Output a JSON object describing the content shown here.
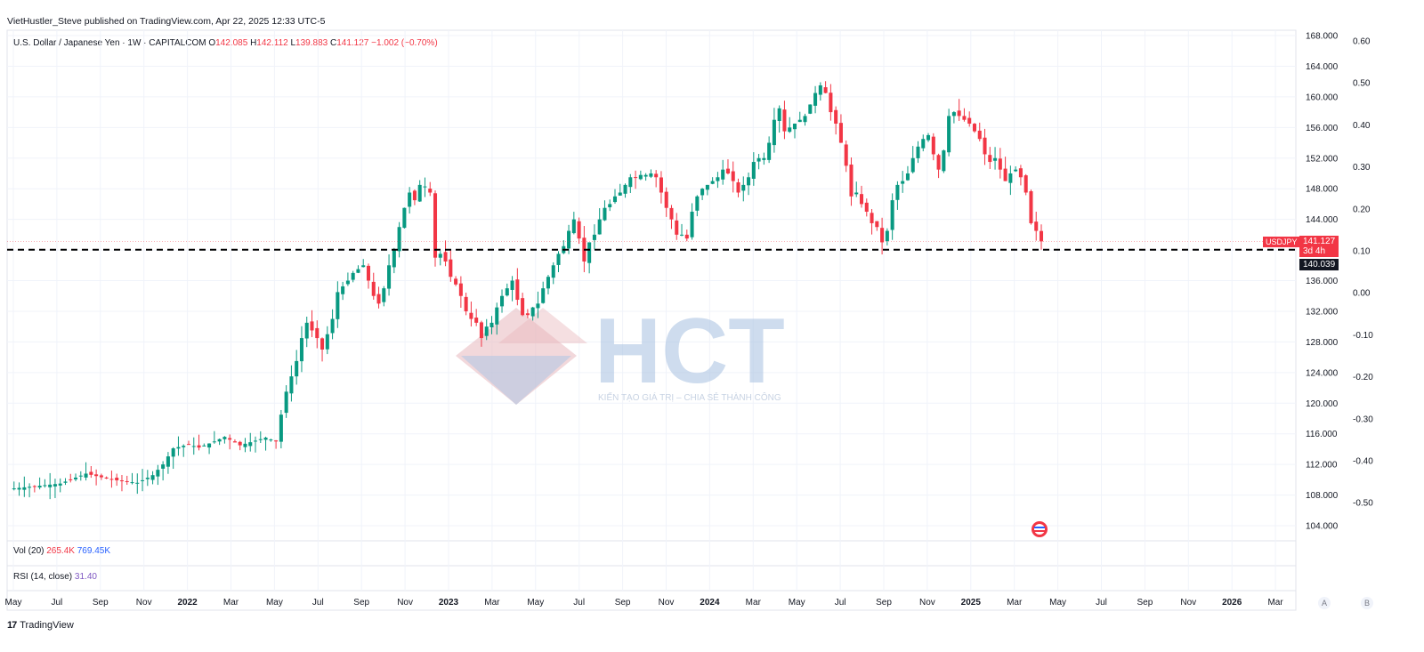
{
  "header": {
    "published_line": "VietHustler_Steve published on TradingView.com, Apr 22, 2025 12:33 UTC-5"
  },
  "legend": {
    "symbol": "U.S. Dollar / Japanese Yen · 1W · CAPITALCOM",
    "o_label": "O",
    "o_value": "142.085",
    "h_label": "H",
    "h_value": "142.112",
    "l_label": "L",
    "l_value": "139.883",
    "c_label": "C",
    "c_value": "141.127",
    "change": "−1.002 (−0.70%)"
  },
  "volume_pane": {
    "label": "Vol (20)",
    "v1": "265.4K",
    "v2": "769.45K"
  },
  "rsi_pane": {
    "label": "RSI (14, close)",
    "value": "31.40"
  },
  "price_tags": {
    "ticker": "USDJPY",
    "last": "141.127",
    "countdown": "3d 4h",
    "line_level": "140.039"
  },
  "watermark": {
    "brand": "HCT",
    "tagline": "KIẾN TẠO GIÁ TRỊ – CHIA SẺ THÀNH CÔNG"
  },
  "axis_buttons": {
    "a": "A",
    "b": "B"
  },
  "footer": {
    "brand": "TradingView",
    "icon": "tradingview-logo-icon"
  },
  "colors": {
    "up": "#089981",
    "down": "#f23645",
    "grid": "#f0f3fa",
    "text": "#131722"
  },
  "chart_data": {
    "type": "candlestick",
    "timeframe": "1W",
    "y_axis": {
      "ticks": [
        "168.000",
        "164.000",
        "160.000",
        "156.000",
        "152.000",
        "148.000",
        "144.000",
        "140.000",
        "136.000",
        "132.000",
        "128.000",
        "124.000",
        "120.000",
        "116.000",
        "112.000",
        "108.000",
        "104.000"
      ],
      "ylim": [
        102,
        169
      ]
    },
    "y2_axis": {
      "ticks": [
        "0.60",
        "0.50",
        "0.40",
        "0.30",
        "0.20",
        "0.10",
        "0.00",
        "-0.10",
        "-0.20",
        "-0.30",
        "-0.40",
        "-0.50"
      ]
    },
    "x_axis": {
      "ticks": [
        "May",
        "Jul",
        "Sep",
        "Nov",
        "2022",
        "Mar",
        "May",
        "Jul",
        "Sep",
        "Nov",
        "2023",
        "Mar",
        "May",
        "Jul",
        "Sep",
        "Nov",
        "2024",
        "Mar",
        "May",
        "Jul",
        "Sep",
        "Nov",
        "2025",
        "Mar",
        "May",
        "Jul",
        "Sep",
        "Nov",
        "2026",
        "Mar"
      ]
    },
    "horizontal_line": {
      "value": 140.039,
      "style": "dashed"
    },
    "last_price": 141.127,
    "path_points": [
      [
        0,
        108.8
      ],
      [
        10,
        109.5
      ],
      [
        15,
        110.8
      ],
      [
        20,
        110.0
      ],
      [
        25,
        109.6
      ],
      [
        28,
        110.6
      ],
      [
        30,
        112.0
      ],
      [
        32,
        114.1
      ],
      [
        35,
        114.6
      ],
      [
        37,
        114.2
      ],
      [
        40,
        115.0
      ],
      [
        42,
        115.6
      ],
      [
        45,
        114.5
      ],
      [
        50,
        115.5
      ],
      [
        52,
        115.0
      ],
      [
        53,
        118.5
      ],
      [
        54,
        121.5
      ],
      [
        55,
        123.5
      ],
      [
        56,
        125.5
      ],
      [
        57,
        128.5
      ],
      [
        58,
        130.5
      ],
      [
        60,
        128.5
      ],
      [
        61,
        127.0
      ],
      [
        63,
        131.0
      ],
      [
        64,
        134.5
      ],
      [
        66,
        136.0
      ],
      [
        67,
        137.0
      ],
      [
        69,
        138.0
      ],
      [
        70,
        136.0
      ],
      [
        71,
        134.0
      ],
      [
        72,
        133.0
      ],
      [
        73,
        135.0
      ],
      [
        74,
        138.0
      ],
      [
        75,
        140.0
      ],
      [
        76,
        143.0
      ],
      [
        77,
        145.5
      ],
      [
        78,
        147.5
      ],
      [
        79,
        146.5
      ],
      [
        80,
        148.5
      ],
      [
        81,
        148.3
      ],
      [
        82,
        147.5
      ],
      [
        83,
        139.0
      ],
      [
        84,
        139.5
      ],
      [
        85,
        138.5
      ],
      [
        86,
        136.5
      ],
      [
        87,
        135.5
      ],
      [
        88,
        134.0
      ],
      [
        89,
        132.0
      ],
      [
        90,
        131.0
      ],
      [
        91,
        130.5
      ],
      [
        92,
        128.5
      ],
      [
        93,
        130.0
      ],
      [
        94,
        130.5
      ],
      [
        95,
        132.5
      ],
      [
        96,
        134.0
      ],
      [
        97,
        135.0
      ],
      [
        98,
        136.0
      ],
      [
        99,
        133.5
      ],
      [
        100,
        131.5
      ],
      [
        101,
        131.5
      ],
      [
        102,
        132.5
      ],
      [
        103,
        133.0
      ],
      [
        104,
        135.0
      ],
      [
        105,
        136.5
      ],
      [
        106,
        138.0
      ],
      [
        107,
        139.5
      ],
      [
        108,
        140.5
      ],
      [
        109,
        142.5
      ],
      [
        110,
        144.0
      ],
      [
        111,
        141.5
      ],
      [
        112,
        138.5
      ],
      [
        113,
        141.0
      ],
      [
        114,
        142.0
      ],
      [
        115,
        144.0
      ],
      [
        116,
        145.5
      ],
      [
        117,
        146.0
      ],
      [
        118,
        147.0
      ],
      [
        119,
        147.5
      ],
      [
        120,
        148.5
      ],
      [
        121,
        149.5
      ],
      [
        122,
        149.5
      ],
      [
        123,
        149.8
      ],
      [
        124,
        149.8
      ],
      [
        125,
        150.0
      ],
      [
        126,
        149.5
      ],
      [
        127,
        147.5
      ],
      [
        128,
        145.5
      ],
      [
        129,
        144.0
      ],
      [
        130,
        142.0
      ],
      [
        131,
        142.0
      ],
      [
        132,
        141.5
      ],
      [
        133,
        145.0
      ],
      [
        134,
        147.0
      ],
      [
        135,
        148.0
      ],
      [
        136,
        148.5
      ],
      [
        137,
        149.0
      ],
      [
        138,
        149.5
      ],
      [
        139,
        150.5
      ],
      [
        140,
        150.0
      ],
      [
        141,
        149.0
      ],
      [
        142,
        147.5
      ],
      [
        143,
        148.5
      ],
      [
        144,
        149.5
      ],
      [
        145,
        151.5
      ],
      [
        146,
        152.0
      ],
      [
        147,
        152.0
      ],
      [
        148,
        154.0
      ],
      [
        149,
        157.0
      ],
      [
        150,
        158.5
      ],
      [
        151,
        155.5
      ],
      [
        152,
        156.0
      ],
      [
        153,
        156.5
      ],
      [
        154,
        157.0
      ],
      [
        155,
        157.5
      ],
      [
        156,
        159.0
      ],
      [
        157,
        160.5
      ],
      [
        158,
        161.5
      ],
      [
        159,
        160.5
      ],
      [
        160,
        158.0
      ],
      [
        161,
        156.5
      ],
      [
        162,
        154.0
      ],
      [
        163,
        151.0
      ],
      [
        164,
        147.0
      ],
      [
        165,
        147.5
      ],
      [
        166,
        146.0
      ],
      [
        167,
        145.0
      ],
      [
        168,
        143.5
      ],
      [
        169,
        143.0
      ],
      [
        170,
        141.0
      ],
      [
        171,
        142.5
      ],
      [
        172,
        146.5
      ],
      [
        173,
        148.5
      ],
      [
        174,
        149.0
      ],
      [
        175,
        150.0
      ],
      [
        176,
        152.0
      ],
      [
        177,
        153.5
      ],
      [
        178,
        154.5
      ],
      [
        179,
        155.0
      ],
      [
        180,
        152.5
      ],
      [
        181,
        150.5
      ],
      [
        182,
        153.0
      ],
      [
        183,
        157.5
      ],
      [
        184,
        158.0
      ],
      [
        185,
        157.5
      ],
      [
        186,
        157.0
      ],
      [
        187,
        156.5
      ],
      [
        188,
        155.5
      ],
      [
        189,
        154.5
      ],
      [
        190,
        152.5
      ],
      [
        191,
        151.5
      ],
      [
        192,
        152.0
      ],
      [
        193,
        150.5
      ],
      [
        194,
        149.0
      ],
      [
        195,
        150.0
      ],
      [
        196,
        150.5
      ],
      [
        197,
        149.5
      ],
      [
        198,
        147.5
      ],
      [
        199,
        143.5
      ],
      [
        200,
        142.5
      ],
      [
        201,
        141.127
      ]
    ]
  }
}
